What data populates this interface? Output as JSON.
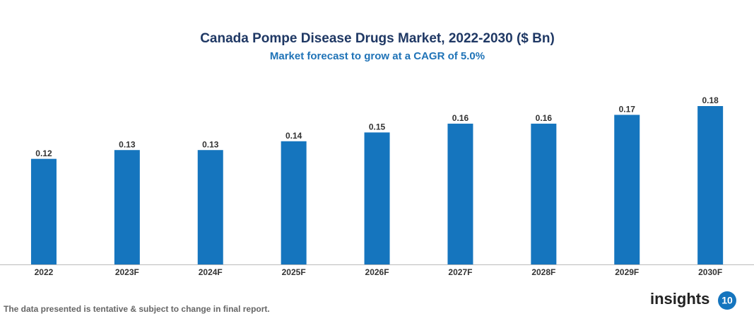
{
  "chart_data": {
    "type": "bar",
    "title": "Canada Pompe Disease Drugs Market, 2022-2030 ($ Bn)",
    "subtitle": "Market forecast to grow at a CAGR of 5.0%",
    "categories": [
      "2022",
      "2023F",
      "2024F",
      "2025F",
      "2026F",
      "2027F",
      "2028F",
      "2029F",
      "2030F"
    ],
    "values": [
      0.12,
      0.13,
      0.13,
      0.14,
      0.15,
      0.16,
      0.16,
      0.17,
      0.18
    ],
    "color": "#1575be",
    "footnote": "The data presented is tentative & subject to change in final report.",
    "logo": {
      "text": "insights",
      "badge": "10"
    }
  }
}
